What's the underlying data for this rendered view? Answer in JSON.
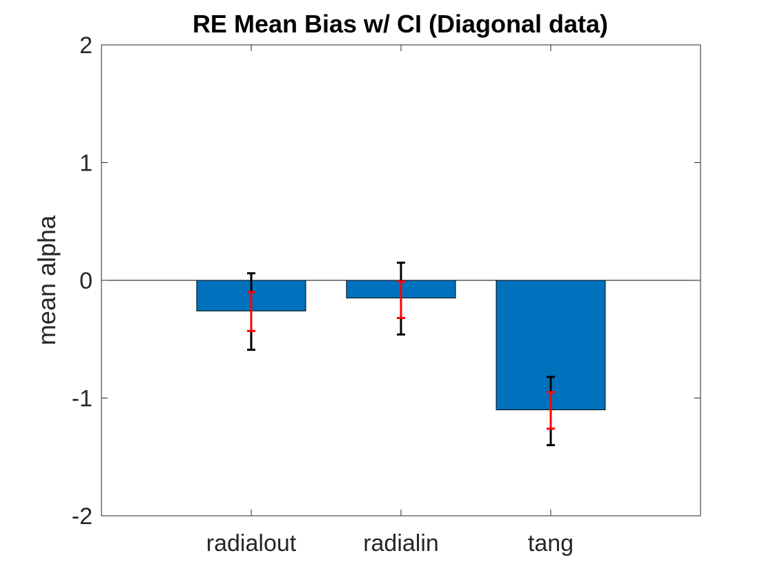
{
  "chart_data": {
    "type": "bar",
    "title": "RE Mean Bias w/ CI (Diagonal data)",
    "xlabel": "",
    "ylabel": "mean alpha",
    "categories": [
      "radialout",
      "radialin",
      "tang"
    ],
    "values": [
      -0.26,
      -0.15,
      -1.1
    ],
    "ylim": [
      -2,
      2
    ],
    "xlim": [
      0.5,
      4.5
    ],
    "x_positions": [
      1.5,
      2.5,
      3.5
    ],
    "yticks": [
      -2,
      -1,
      0,
      1,
      2
    ],
    "ytick_labels": [
      "-2",
      "-1",
      "0",
      "1",
      "2"
    ],
    "grid": false,
    "bar_color": "#0072bd",
    "error_bars": [
      {
        "name": "outer",
        "color": "#000000",
        "lower": [
          -0.59,
          -0.46,
          -1.4
        ],
        "upper": [
          0.06,
          0.15,
          -0.82
        ]
      },
      {
        "name": "inner",
        "color": "#ff0000",
        "lower": [
          -0.43,
          -0.32,
          -1.26
        ],
        "upper": [
          -0.1,
          -0.01,
          -0.95
        ]
      }
    ]
  }
}
